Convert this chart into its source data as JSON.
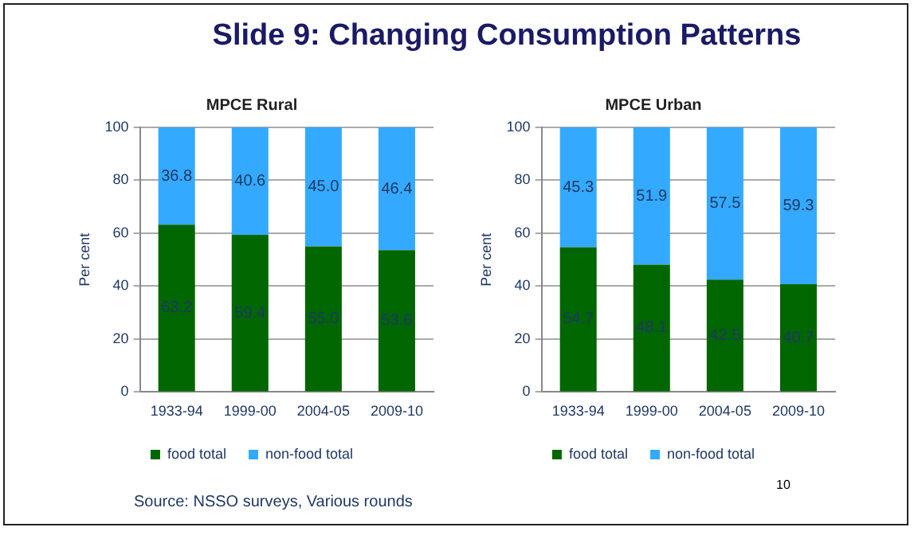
{
  "chart_data": [
    {
      "type": "bar",
      "title": "MPCE Rural",
      "ylabel": "Per cent",
      "stacked": true,
      "categories": [
        "1933-94",
        "1999-00",
        "2004-05",
        "2009-10"
      ],
      "series": [
        {
          "name": "food total",
          "color": "#006600",
          "values": [
            63.2,
            59.4,
            55.0,
            53.6
          ],
          "value_labels": [
            "63.2",
            "59.4",
            "55.0",
            "53.6"
          ]
        },
        {
          "name": "non-food total",
          "color": "#33aaff",
          "values": [
            36.8,
            40.6,
            45.0,
            46.4
          ],
          "value_labels": [
            "36.8",
            "40.6",
            "45.0",
            "46.4"
          ]
        }
      ],
      "ylim": [
        0,
        100
      ],
      "yticks": [
        0,
        20,
        40,
        60,
        80,
        100
      ],
      "grid": "y",
      "legend": "bottom",
      "annotations": [
        "Slide 9: Changing Consumption Patterns",
        "Source: NSSO surveys, Various rounds",
        "10"
      ]
    },
    {
      "type": "bar",
      "title": "MPCE Urban",
      "ylabel": "Per cent",
      "stacked": true,
      "categories": [
        "1933-94",
        "1999-00",
        "2004-05",
        "2009-10"
      ],
      "series": [
        {
          "name": "food total",
          "color": "#006600",
          "values": [
            54.7,
            48.1,
            42.5,
            40.7
          ],
          "value_labels": [
            "54.7",
            "48.1",
            "42.5",
            "40.7"
          ]
        },
        {
          "name": "non-food total",
          "color": "#33aaff",
          "values": [
            45.3,
            51.9,
            57.5,
            59.3
          ],
          "value_labels": [
            "45.3",
            "51.9",
            "57.5",
            "59.3"
          ]
        }
      ],
      "ylim": [
        0,
        100
      ],
      "yticks": [
        0,
        20,
        40,
        60,
        80,
        100
      ],
      "grid": "y",
      "legend": "bottom"
    }
  ]
}
